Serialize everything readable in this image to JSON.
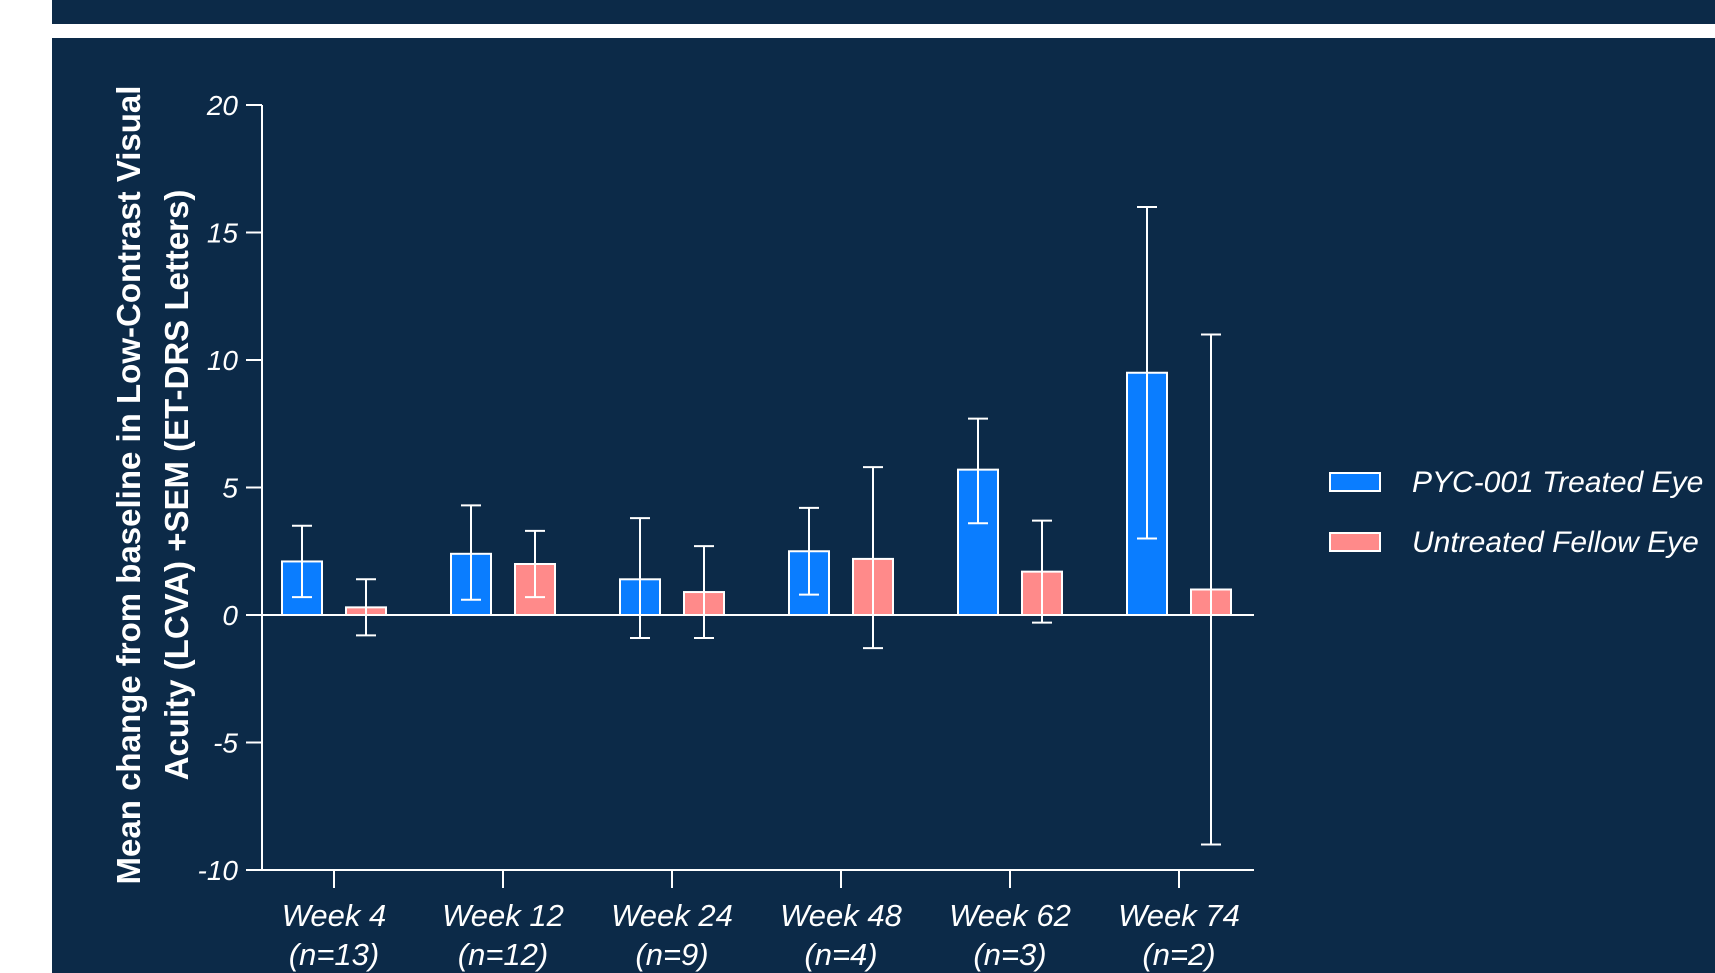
{
  "chart_data": {
    "type": "bar",
    "title": "",
    "ylabel_lines": [
      "Mean change from baseline in Low-Contrast Visual",
      "Acuity (LCVA) +SEM (ET-DRS Letters)"
    ],
    "xlabel": "",
    "ylim": [
      -10,
      20
    ],
    "yticks": [
      20,
      15,
      10,
      5,
      0,
      -5,
      -10
    ],
    "categories": [
      {
        "line1": "Week 4",
        "line2": "(n=13)"
      },
      {
        "line1": "Week 12",
        "line2": "(n=12)"
      },
      {
        "line1": "Week 24",
        "line2": "(n=9)"
      },
      {
        "line1": "Week 48",
        "line2": "(n=4)"
      },
      {
        "line1": "Week 62",
        "line2": "(n=3)"
      },
      {
        "line1": "Week 74",
        "line2": "(n=2)"
      }
    ],
    "series": [
      {
        "name": "PYC-001 Treated Eye",
        "color": "#0a7dff",
        "values": [
          2.1,
          2.4,
          1.4,
          2.5,
          5.7,
          9.5
        ],
        "err_low": [
          0.7,
          0.6,
          -0.9,
          0.8,
          3.6,
          3.0
        ],
        "err_high": [
          3.5,
          4.3,
          3.8,
          4.2,
          7.7,
          16.0
        ]
      },
      {
        "name": "Untreated Fellow Eye",
        "color": "#ff8a8a",
        "values": [
          0.3,
          2.0,
          0.9,
          2.2,
          1.7,
          1.0
        ],
        "err_low": [
          -0.8,
          0.7,
          -0.9,
          -1.3,
          -0.3,
          -9.0
        ],
        "err_high": [
          1.4,
          3.3,
          2.7,
          5.8,
          3.7,
          11.0
        ]
      }
    ],
    "legend_position": "right",
    "grid": false
  }
}
